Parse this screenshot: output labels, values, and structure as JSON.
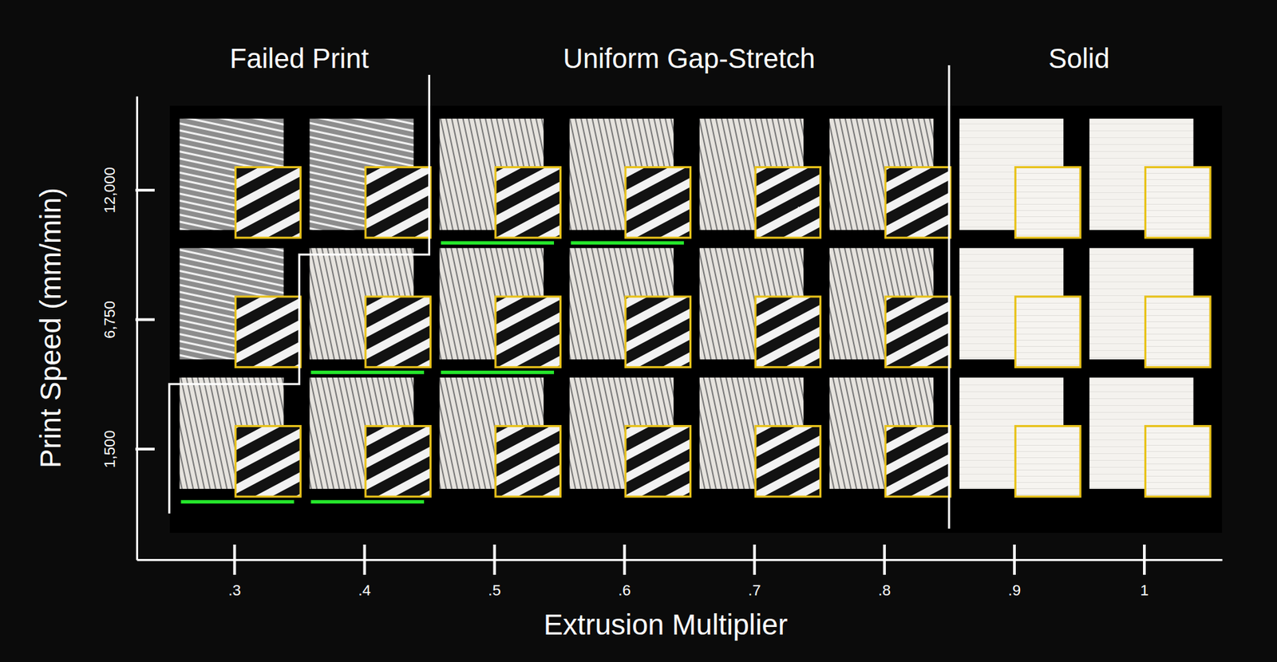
{
  "chart_data": {
    "type": "image-grid",
    "x_label": "Extrusion Multiplier",
    "y_label": "Print Speed (mm/min)",
    "xlim": [
      0.225,
      1.06
    ],
    "ylim": [
      -3000,
      15800
    ],
    "xticks": [
      {
        "value": 0.3,
        "label": ".3"
      },
      {
        "value": 0.4,
        "label": ".4"
      },
      {
        "value": 0.5,
        "label": ".5"
      },
      {
        "value": 0.6,
        "label": ".6"
      },
      {
        "value": 0.7,
        "label": ".7"
      },
      {
        "value": 0.8,
        "label": ".8"
      },
      {
        "value": 0.9,
        "label": ".9"
      },
      1
    ],
    "yticks": [
      {
        "value": 1500,
        "label": "1,500"
      },
      {
        "value": 6750,
        "label": "6,750"
      },
      {
        "value": 12000,
        "label": "12,000"
      }
    ],
    "grid": false,
    "series": [
      {
        "name": "Failed Print",
        "x": [
          0.3,
          0.4,
          0.3
        ],
        "y": [
          12000,
          12000,
          6750
        ],
        "underlined": [
          false,
          false,
          false
        ]
      },
      {
        "name": "Uniform Gap-Stretch",
        "x": [
          0.5,
          0.6,
          0.7,
          0.8,
          0.4,
          0.5,
          0.6,
          0.7,
          0.8,
          0.3,
          0.4,
          0.5,
          0.6,
          0.7,
          0.8
        ],
        "y": [
          12000,
          12000,
          12000,
          12000,
          6750,
          6750,
          6750,
          6750,
          6750,
          1500,
          1500,
          1500,
          1500,
          1500,
          1500
        ],
        "underlined": [
          true,
          true,
          false,
          false,
          true,
          true,
          false,
          false,
          false,
          true,
          true,
          false,
          false,
          false,
          false
        ]
      },
      {
        "name": "Solid",
        "x": [
          0.9,
          1,
          0.9,
          1,
          0.9,
          1
        ],
        "y": [
          12000,
          12000,
          6750,
          6750,
          1500,
          1500
        ],
        "underlined": [
          false,
          false,
          false,
          false,
          false,
          false
        ]
      }
    ]
  }
}
